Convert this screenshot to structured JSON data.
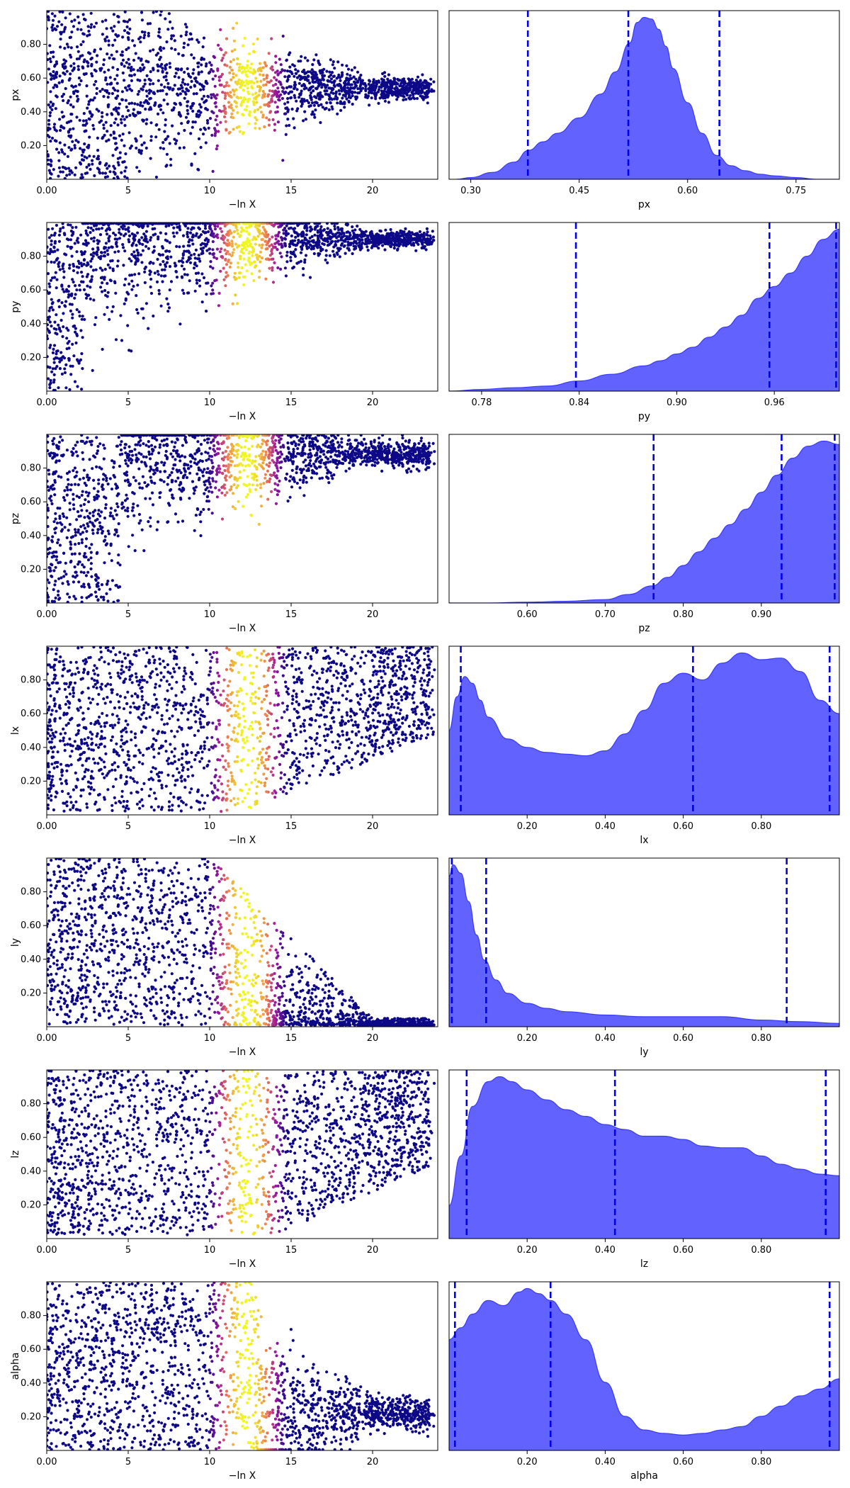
{
  "colors": {
    "posterior_fill": "#6262ff",
    "posterior_edge": "#3a3aff",
    "quantile_line": "#0000ee",
    "scatter_low": "#0d0887",
    "scatter_mid": "#9c179e",
    "scatter_orange": "#ed7953",
    "scatter_peak": "#f0f921"
  },
  "chart_data": [
    {
      "type": "scatter",
      "xlabel": "−ln X",
      "ylabel": "px",
      "xlim": [
        0,
        24
      ],
      "ylim": [
        0,
        1
      ],
      "xticks": [
        0,
        5,
        10,
        15,
        20
      ],
      "yticks": [
        0.2,
        0.4,
        0.6,
        0.8
      ],
      "converge": {
        "center": 0.54,
        "halfwidth_at_20": 0.06,
        "start_x": 5
      },
      "color_peak_x": 12.3
    },
    {
      "type": "area",
      "xlabel": "px",
      "ylabel": "",
      "xlim": [
        0.27,
        0.81
      ],
      "xticks": [
        0.3,
        0.45,
        0.6,
        0.75
      ],
      "x": [
        0.28,
        0.3,
        0.33,
        0.36,
        0.38,
        0.4,
        0.42,
        0.45,
        0.48,
        0.5,
        0.52,
        0.53,
        0.54,
        0.55,
        0.56,
        0.57,
        0.58,
        0.6,
        0.62,
        0.64,
        0.66,
        0.68,
        0.7,
        0.72,
        0.75,
        0.78,
        0.81
      ],
      "y": [
        0.0,
        0.01,
        0.04,
        0.1,
        0.17,
        0.22,
        0.27,
        0.36,
        0.5,
        0.63,
        0.8,
        0.92,
        0.95,
        0.94,
        0.88,
        0.78,
        0.65,
        0.45,
        0.27,
        0.14,
        0.08,
        0.05,
        0.03,
        0.02,
        0.01,
        0.0,
        0.0
      ],
      "quantiles": [
        0.379,
        0.518,
        0.644
      ]
    },
    {
      "type": "scatter",
      "xlabel": "−ln X",
      "ylabel": "py",
      "xlim": [
        0,
        24
      ],
      "ylim": [
        0,
        1
      ],
      "xticks": [
        0,
        5,
        10,
        15,
        20
      ],
      "yticks": [
        0.2,
        0.4,
        0.6,
        0.8
      ],
      "converge": {
        "center": 0.9,
        "halfwidth_at_20": 0.05,
        "start_x": 2.2
      },
      "color_peak_x": 12.3
    },
    {
      "type": "area",
      "xlabel": "py",
      "ylabel": "",
      "xlim": [
        0.76,
        1.0
      ],
      "xticks": [
        0.78,
        0.84,
        0.9,
        0.96
      ],
      "x": [
        0.76,
        0.78,
        0.8,
        0.82,
        0.84,
        0.86,
        0.88,
        0.89,
        0.9,
        0.91,
        0.92,
        0.93,
        0.94,
        0.95,
        0.96,
        0.97,
        0.98,
        0.99,
        1.0
      ],
      "y": [
        0.0,
        0.01,
        0.02,
        0.03,
        0.06,
        0.1,
        0.15,
        0.18,
        0.22,
        0.26,
        0.32,
        0.38,
        0.45,
        0.55,
        0.62,
        0.7,
        0.8,
        0.9,
        0.96
      ],
      "quantiles": [
        0.838,
        0.957,
        0.998
      ]
    },
    {
      "type": "scatter",
      "xlabel": "−ln X",
      "ylabel": "pz",
      "xlim": [
        0,
        24
      ],
      "ylim": [
        0,
        1
      ],
      "xticks": [
        0,
        5,
        10,
        15,
        20
      ],
      "yticks": [
        0.2,
        0.4,
        0.6,
        0.8
      ],
      "converge": {
        "center": 0.88,
        "halfwidth_at_20": 0.07,
        "start_x": 4.5
      },
      "color_peak_x": 12.3
    },
    {
      "type": "area",
      "xlabel": "pz",
      "ylabel": "",
      "xlim": [
        0.5,
        1.0
      ],
      "xticks": [
        0.6,
        0.7,
        0.8,
        0.9
      ],
      "x": [
        0.5,
        0.55,
        0.6,
        0.65,
        0.7,
        0.73,
        0.76,
        0.78,
        0.8,
        0.82,
        0.84,
        0.86,
        0.88,
        0.9,
        0.92,
        0.94,
        0.96,
        0.98,
        1.0
      ],
      "y": [
        0.0,
        0.0,
        0.005,
        0.01,
        0.02,
        0.05,
        0.1,
        0.15,
        0.22,
        0.3,
        0.38,
        0.46,
        0.55,
        0.65,
        0.75,
        0.85,
        0.92,
        0.95,
        0.93
      ],
      "quantiles": [
        0.762,
        0.926,
        0.994
      ]
    },
    {
      "type": "scatter",
      "xlabel": "−ln X",
      "ylabel": "lx",
      "xlim": [
        0,
        24
      ],
      "ylim": [
        0,
        1
      ],
      "xticks": [
        0,
        5,
        10,
        15,
        20
      ],
      "yticks": [
        0.2,
        0.4,
        0.6,
        0.8
      ],
      "band": {
        "min_at_max": 0.48,
        "start_x": 12
      },
      "color_peak_x": 12.3
    },
    {
      "type": "area",
      "xlabel": "lx",
      "ylabel": "",
      "xlim": [
        0.0,
        1.0
      ],
      "xticks": [
        0.2,
        0.4,
        0.6,
        0.8
      ],
      "x": [
        0.0,
        0.02,
        0.04,
        0.06,
        0.08,
        0.1,
        0.15,
        0.2,
        0.25,
        0.3,
        0.35,
        0.4,
        0.45,
        0.5,
        0.55,
        0.6,
        0.65,
        0.7,
        0.75,
        0.8,
        0.85,
        0.9,
        0.95,
        1.0
      ],
      "y": [
        0.5,
        0.7,
        0.82,
        0.78,
        0.68,
        0.58,
        0.45,
        0.4,
        0.37,
        0.36,
        0.35,
        0.38,
        0.48,
        0.62,
        0.78,
        0.84,
        0.8,
        0.9,
        0.96,
        0.92,
        0.93,
        0.85,
        0.68,
        0.6
      ],
      "quantiles": [
        0.03,
        0.625,
        0.975
      ]
    },
    {
      "type": "scatter",
      "xlabel": "−ln X",
      "ylabel": "ly",
      "xlim": [
        0,
        24
      ],
      "ylim": [
        0,
        1
      ],
      "xticks": [
        0,
        5,
        10,
        15,
        20
      ],
      "yticks": [
        0.2,
        0.4,
        0.6,
        0.8
      ],
      "decay": {
        "ymax_at_far": 0.04,
        "start_x": 10
      },
      "color_peak_x": 12.3
    },
    {
      "type": "area",
      "xlabel": "ly",
      "ylabel": "",
      "xlim": [
        0.0,
        1.0
      ],
      "xticks": [
        0.2,
        0.4,
        0.6,
        0.8
      ],
      "x": [
        0.0,
        0.01,
        0.03,
        0.05,
        0.07,
        0.09,
        0.12,
        0.15,
        0.2,
        0.25,
        0.3,
        0.4,
        0.5,
        0.6,
        0.7,
        0.8,
        0.9,
        1.0
      ],
      "y": [
        0.9,
        0.97,
        0.92,
        0.75,
        0.55,
        0.4,
        0.28,
        0.2,
        0.14,
        0.11,
        0.09,
        0.07,
        0.06,
        0.06,
        0.06,
        0.04,
        0.03,
        0.02
      ],
      "quantiles": [
        0.007,
        0.095,
        0.865
      ]
    },
    {
      "type": "scatter",
      "xlabel": "−ln X",
      "ylabel": "lz",
      "xlim": [
        0,
        24
      ],
      "ylim": [
        0,
        1
      ],
      "xticks": [
        0,
        5,
        10,
        15,
        20
      ],
      "yticks": [
        0.2,
        0.4,
        0.6,
        0.8
      ],
      "band": {
        "min_at_max": 0.45,
        "start_x": 14
      },
      "color_peak_x": 12.3
    },
    {
      "type": "area",
      "xlabel": "lz",
      "ylabel": "",
      "xlim": [
        0.0,
        1.0
      ],
      "xticks": [
        0.2,
        0.4,
        0.6,
        0.8
      ],
      "x": [
        0.0,
        0.03,
        0.06,
        0.1,
        0.13,
        0.16,
        0.2,
        0.25,
        0.3,
        0.35,
        0.4,
        0.45,
        0.5,
        0.55,
        0.6,
        0.65,
        0.7,
        0.75,
        0.8,
        0.85,
        0.9,
        0.95,
        1.0
      ],
      "y": [
        0.2,
        0.5,
        0.8,
        0.95,
        0.98,
        0.95,
        0.9,
        0.84,
        0.78,
        0.74,
        0.69,
        0.66,
        0.62,
        0.62,
        0.6,
        0.56,
        0.55,
        0.55,
        0.5,
        0.45,
        0.42,
        0.39,
        0.38
      ],
      "quantiles": [
        0.045,
        0.425,
        0.965
      ]
    },
    {
      "type": "scatter",
      "xlabel": "−ln X",
      "ylabel": "alpha",
      "xlim": [
        0,
        24
      ],
      "ylim": [
        0,
        1
      ],
      "xticks": [
        0,
        5,
        10,
        15,
        20
      ],
      "yticks": [
        0.2,
        0.4,
        0.6,
        0.8
      ],
      "converge": {
        "center": 0.22,
        "halfwidth_at_20": 0.1,
        "start_x": 13
      },
      "color_peak_x": 12.3
    },
    {
      "type": "area",
      "xlabel": "alpha",
      "ylabel": "",
      "xlim": [
        0.0,
        1.0
      ],
      "xticks": [
        0.2,
        0.4,
        0.6,
        0.8
      ],
      "x": [
        0.0,
        0.03,
        0.06,
        0.1,
        0.14,
        0.18,
        0.2,
        0.23,
        0.26,
        0.3,
        0.35,
        0.4,
        0.45,
        0.5,
        0.55,
        0.6,
        0.65,
        0.7,
        0.75,
        0.8,
        0.85,
        0.9,
        0.95,
        1.0
      ],
      "y": [
        0.65,
        0.72,
        0.8,
        0.88,
        0.85,
        0.93,
        0.95,
        0.92,
        0.88,
        0.8,
        0.65,
        0.4,
        0.2,
        0.12,
        0.1,
        0.09,
        0.1,
        0.12,
        0.14,
        0.2,
        0.26,
        0.32,
        0.36,
        0.42
      ],
      "quantiles": [
        0.015,
        0.26,
        0.975
      ]
    }
  ]
}
